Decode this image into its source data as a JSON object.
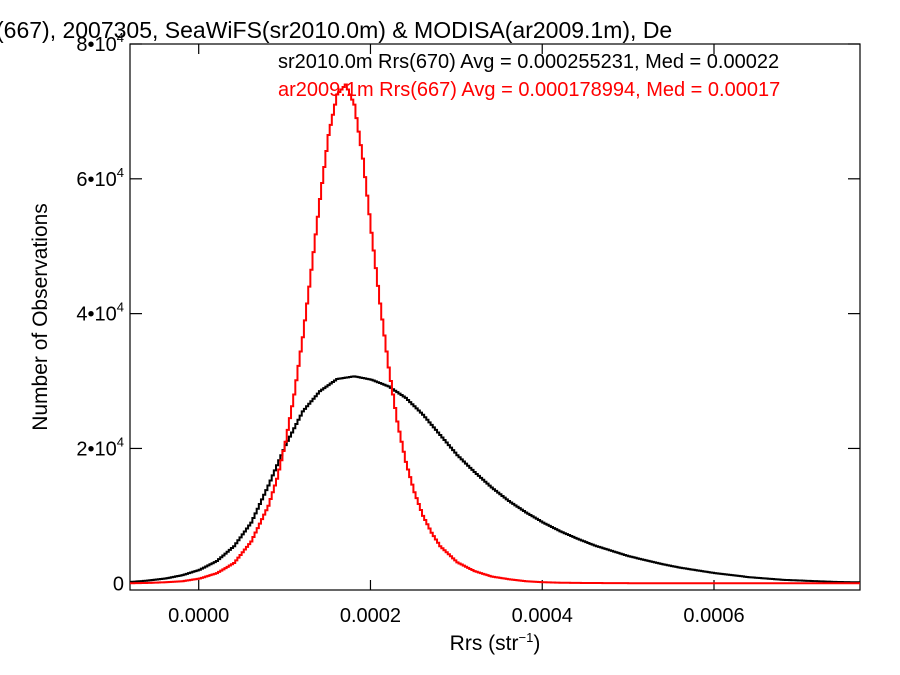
{
  "chart_data": {
    "type": "line",
    "title": "(667), 2007305, SeaWiFS(sr2010.0m) & MODISA(ar2009.1m), De",
    "xlabel_main": "Rrs (str",
    "xlabel_sup": "−1",
    "xlabel_tail": ")",
    "ylabel": "Number of Observations",
    "xlim": [
      -8e-05,
      0.00077
    ],
    "ylim": [
      -1000,
      80000
    ],
    "grid": false,
    "legend_placement": "top-right",
    "x_ticks": [
      {
        "value": 0.0,
        "label": "0.0000"
      },
      {
        "value": 0.0002,
        "label": "0.0002"
      },
      {
        "value": 0.0004,
        "label": "0.0004"
      },
      {
        "value": 0.0006,
        "label": "0.0006"
      }
    ],
    "y_ticks": [
      {
        "value": 0,
        "base": "0",
        "exp": ""
      },
      {
        "value": 20000,
        "base": "2•10",
        "exp": "4"
      },
      {
        "value": 40000,
        "base": "4•10",
        "exp": "4"
      },
      {
        "value": 60000,
        "base": "6•10",
        "exp": "4"
      },
      {
        "value": 80000,
        "base": "8•10",
        "exp": "4"
      }
    ],
    "series": [
      {
        "name": "sr2010.0m Rrs(670)",
        "color": "#000000",
        "annotation": "sr2010.0m Rrs(670) Avg = 0.000255231, Med = 0.00022",
        "x": [
          -8e-05,
          -6e-05,
          -4e-05,
          -2e-05,
          0.0,
          2e-05,
          4e-05,
          6e-05,
          8e-05,
          0.0001,
          0.00012,
          0.00014,
          0.00016,
          0.00018,
          0.0002,
          0.00022,
          0.00024,
          0.00026,
          0.00028,
          0.0003,
          0.00032,
          0.00034,
          0.00036,
          0.00038,
          0.0004,
          0.00042,
          0.00044,
          0.00046,
          0.00048,
          0.0005,
          0.00052,
          0.00054,
          0.00056,
          0.00058,
          0.0006,
          0.00062,
          0.00064,
          0.00066,
          0.00068,
          0.0007,
          0.00072,
          0.00074,
          0.00076
        ],
        "values": [
          200,
          400,
          700,
          1200,
          2000,
          3300,
          5500,
          9000,
          14500,
          20500,
          25500,
          28500,
          30300,
          30700,
          30200,
          29200,
          27500,
          25000,
          22000,
          19000,
          16500,
          14200,
          12200,
          10500,
          9000,
          7700,
          6600,
          5600,
          4800,
          4000,
          3400,
          2800,
          2300,
          1900,
          1500,
          1200,
          900,
          700,
          500,
          400,
          300,
          200,
          150
        ]
      },
      {
        "name": "ar2009.1m Rrs(667)",
        "color": "#ff0000",
        "annotation": "ar2009.1m Rrs(667) Avg = 0.000178994, Med = 0.00017",
        "x": [
          -8e-05,
          -6e-05,
          -4e-05,
          -2e-05,
          0.0,
          2e-05,
          4e-05,
          6e-05,
          8e-05,
          9e-05,
          0.0001,
          0.00011,
          0.00012,
          0.00013,
          0.00014,
          0.00015,
          0.00016,
          0.00017,
          0.00018,
          0.00019,
          0.0002,
          0.00021,
          0.00022,
          0.00023,
          0.00024,
          0.00025,
          0.00026,
          0.00027,
          0.00028,
          0.0003,
          0.00032,
          0.00034,
          0.00036,
          0.00038,
          0.0004,
          0.00042,
          0.00045,
          0.0005,
          0.00055,
          0.0006,
          0.00065,
          0.0007,
          0.00076
        ],
        "values": [
          0,
          50,
          150,
          300,
          700,
          1500,
          3000,
          6200,
          11500,
          15500,
          21000,
          28000,
          36500,
          46500,
          57000,
          66500,
          72500,
          74000,
          71000,
          63000,
          52000,
          41500,
          32000,
          24000,
          18000,
          13500,
          10000,
          7500,
          5500,
          3100,
          1800,
          1000,
          600,
          300,
          150,
          80,
          40,
          10,
          0,
          0,
          0,
          0,
          0
        ]
      }
    ]
  }
}
